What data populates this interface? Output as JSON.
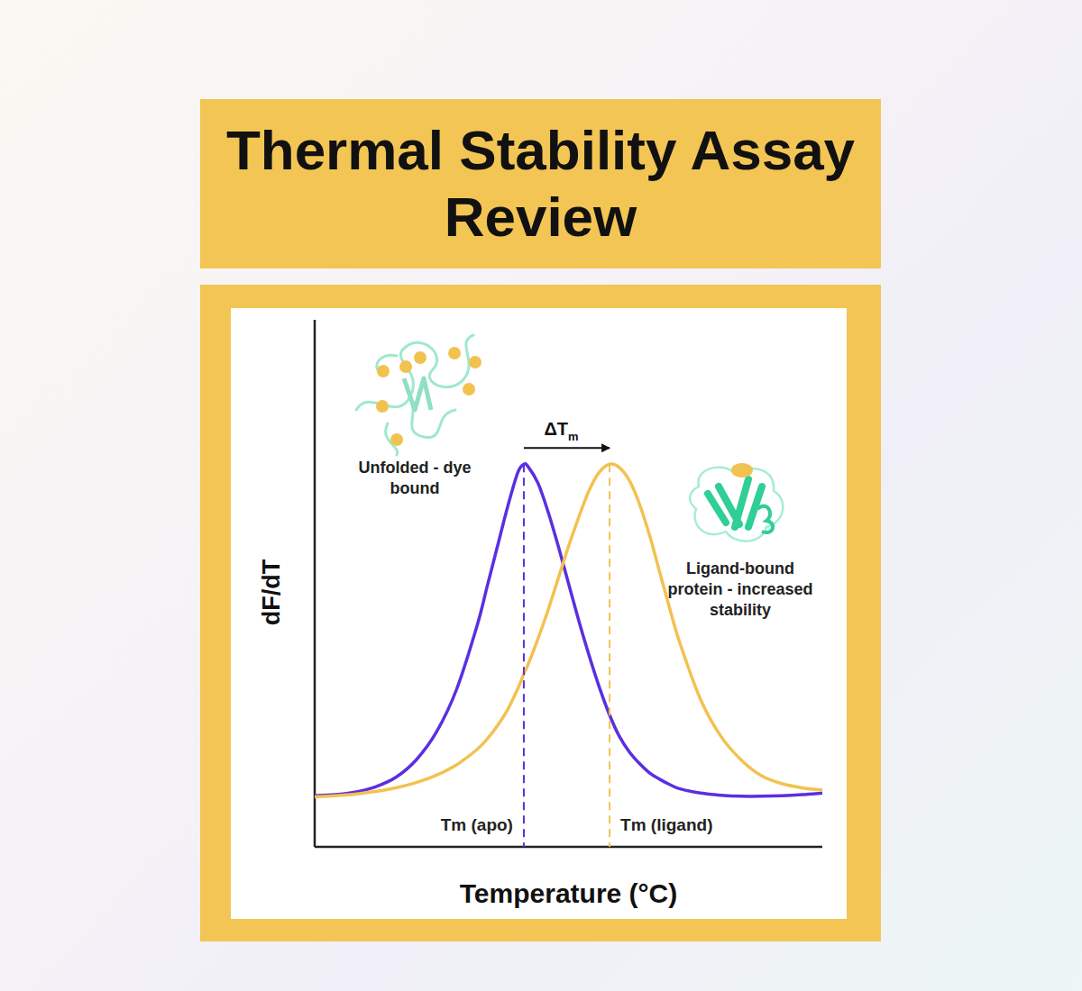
{
  "chart_data": {
    "type": "line",
    "title": "Thermal Stability Assay Review",
    "x_label": "Temperature (°C)",
    "y_label": "dF/dT",
    "x": [
      0,
      4,
      8,
      12,
      16,
      20,
      24,
      28,
      32,
      34,
      36,
      38,
      40,
      41.2,
      42,
      44,
      46,
      48,
      50,
      52,
      54,
      56,
      58.1,
      60,
      62,
      64,
      66,
      68,
      70,
      72,
      76,
      80,
      84,
      88,
      92,
      96,
      100
    ],
    "series": [
      {
        "color": "#5b2fe0",
        "values": [
          9.7,
          9.9,
          10.4,
          11.4,
          13.2,
          16.5,
          21.8,
          30,
          42,
          49.5,
          57,
          64.5,
          71,
          72.6,
          72.2,
          69,
          63.5,
          57,
          50,
          43,
          36.5,
          30.5,
          25,
          21,
          18,
          15.8,
          14,
          12.8,
          11.8,
          11,
          10.2,
          9.8,
          9.6,
          9.6,
          9.7,
          9.9,
          10.2
        ]
      },
      {
        "color": "#f2c250",
        "values": [
          9.5,
          9.7,
          10,
          10.5,
          11.2,
          12.2,
          13.6,
          15.6,
          18.5,
          20.5,
          23,
          26,
          30,
          32.8,
          34.5,
          39.5,
          45,
          51,
          57,
          62.5,
          67.5,
          71,
          72.6,
          72,
          69.5,
          65,
          59,
          52,
          45,
          38.5,
          28,
          21,
          16.5,
          13.5,
          12,
          11.2,
          10.8
        ]
      }
    ],
    "xlim": [
      0,
      100
    ],
    "ylim": [
      0,
      100
    ],
    "tick_labels": false,
    "grid": false,
    "annotations": [
      {
        "text": "Tm (apo)",
        "x": 41.2,
        "color": "#5b2fe0"
      },
      {
        "text": "Tm (ligand)",
        "x": 58.1,
        "color": "#f2c250"
      }
    ],
    "delta_label": "ΔTm",
    "captions": [
      "Unfolded - dye bound",
      "Ligand-bound protein - increased stability"
    ]
  }
}
